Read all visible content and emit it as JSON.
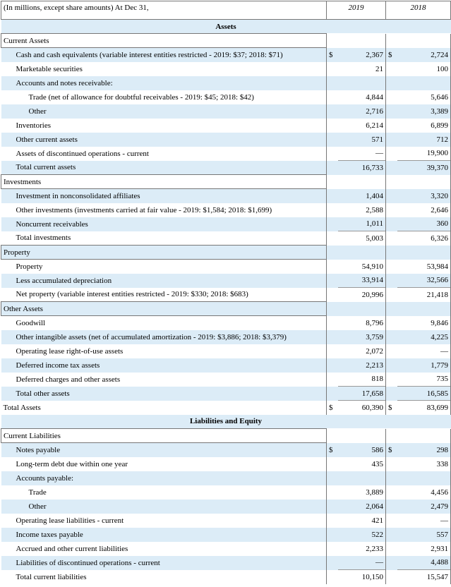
{
  "header": {
    "label": "(In millions, except share amounts) At Dec 31,",
    "col1": "2019",
    "col2": "2018"
  },
  "rows": [
    {
      "label": "Assets",
      "kind": "section"
    },
    {
      "label": "Current Assets",
      "kind": "group"
    },
    {
      "label": "Cash and cash equivalents (variable interest entities restricted - 2019: $37; 2018: $71)",
      "level": 1,
      "cur1": "$",
      "v1": "2,367",
      "cur2": "$",
      "v2": "2,724"
    },
    {
      "label": "Marketable securities",
      "level": 1,
      "v1": "21",
      "v2": "100"
    },
    {
      "label": "Accounts and notes receivable:",
      "level": 1
    },
    {
      "label": "Trade (net of allowance for doubtful receivables - 2019: $45; 2018: $42)",
      "level": 2,
      "v1": "4,844",
      "v2": "5,646"
    },
    {
      "label": "Other",
      "level": 2,
      "v1": "2,716",
      "v2": "3,389"
    },
    {
      "label": "Inventories",
      "level": 1,
      "v1": "6,214",
      "v2": "6,899"
    },
    {
      "label": "Other current assets",
      "level": 1,
      "v1": "571",
      "v2": "712"
    },
    {
      "label": "Assets of discontinued operations - current",
      "level": 1,
      "v1": "—",
      "v2": "19,900"
    },
    {
      "label": "Total current assets",
      "level": 1,
      "kind": "total",
      "v1": "16,733",
      "v2": "39,370"
    },
    {
      "label": "Investments",
      "kind": "group"
    },
    {
      "label": "Investment in nonconsolidated affiliates",
      "level": 1,
      "v1": "1,404",
      "v2": "3,320"
    },
    {
      "label": "Other investments (investments carried at fair value - 2019: $1,584; 2018: $1,699)",
      "level": 1,
      "v1": "2,588",
      "v2": "2,646"
    },
    {
      "label": "Noncurrent receivables",
      "level": 1,
      "v1": "1,011",
      "v2": "360"
    },
    {
      "label": "Total investments",
      "level": 1,
      "kind": "total",
      "v1": "5,003",
      "v2": "6,326"
    },
    {
      "label": "Property",
      "kind": "group"
    },
    {
      "label": "Property",
      "level": 1,
      "v1": "54,910",
      "v2": "53,984"
    },
    {
      "label": "Less accumulated depreciation",
      "level": 1,
      "v1": "33,914",
      "v2": "32,566"
    },
    {
      "label": "Net property (variable interest entities restricted - 2019: $330; 2018: $683)",
      "level": 1,
      "kind": "total",
      "v1": "20,996",
      "v2": "21,418"
    },
    {
      "label": "Other Assets",
      "kind": "group"
    },
    {
      "label": "Goodwill",
      "level": 1,
      "v1": "8,796",
      "v2": "9,846"
    },
    {
      "label": "Other intangible assets (net of accumulated amortization - 2019: $3,886; 2018: $3,379)",
      "level": 1,
      "v1": "3,759",
      "v2": "4,225"
    },
    {
      "label": "Operating lease right-of-use assets",
      "level": 1,
      "v1": "2,072",
      "v2": "—"
    },
    {
      "label": "Deferred income tax assets",
      "level": 1,
      "v1": "2,213",
      "v2": "1,779"
    },
    {
      "label": "Deferred charges and other assets",
      "level": 1,
      "v1": "818",
      "v2": "735"
    },
    {
      "label": "Total other assets",
      "level": 1,
      "kind": "total",
      "v1": "17,658",
      "v2": "16,585"
    },
    {
      "label": "Total Assets",
      "kind": "total",
      "cur1": "$",
      "v1": "60,390",
      "cur2": "$",
      "v2": "83,699"
    },
    {
      "label": "Liabilities and Equity",
      "kind": "section"
    },
    {
      "label": "Current Liabilities",
      "kind": "group"
    },
    {
      "label": "Notes payable",
      "level": 1,
      "cur1": "$",
      "v1": "586",
      "cur2": "$",
      "v2": "298"
    },
    {
      "label": "Long-term debt due within one year",
      "level": 1,
      "v1": "435",
      "v2": "338"
    },
    {
      "label": "Accounts payable:",
      "level": 1
    },
    {
      "label": "Trade",
      "level": 2,
      "v1": "3,889",
      "v2": "4,456"
    },
    {
      "label": "Other",
      "level": 2,
      "v1": "2,064",
      "v2": "2,479"
    },
    {
      "label": "Operating lease liabilities - current",
      "level": 1,
      "v1": "421",
      "v2": "—"
    },
    {
      "label": "Income taxes payable",
      "level": 1,
      "v1": "522",
      "v2": "557"
    },
    {
      "label": "Accrued and other current liabilities",
      "level": 1,
      "v1": "2,233",
      "v2": "2,931"
    },
    {
      "label": "Liabilities of discontinued operations - current",
      "level": 1,
      "v1": "—",
      "v2": "4,488"
    },
    {
      "label": "Total current liabilities",
      "level": 1,
      "kind": "total",
      "v1": "10,150",
      "v2": "15,547"
    }
  ]
}
